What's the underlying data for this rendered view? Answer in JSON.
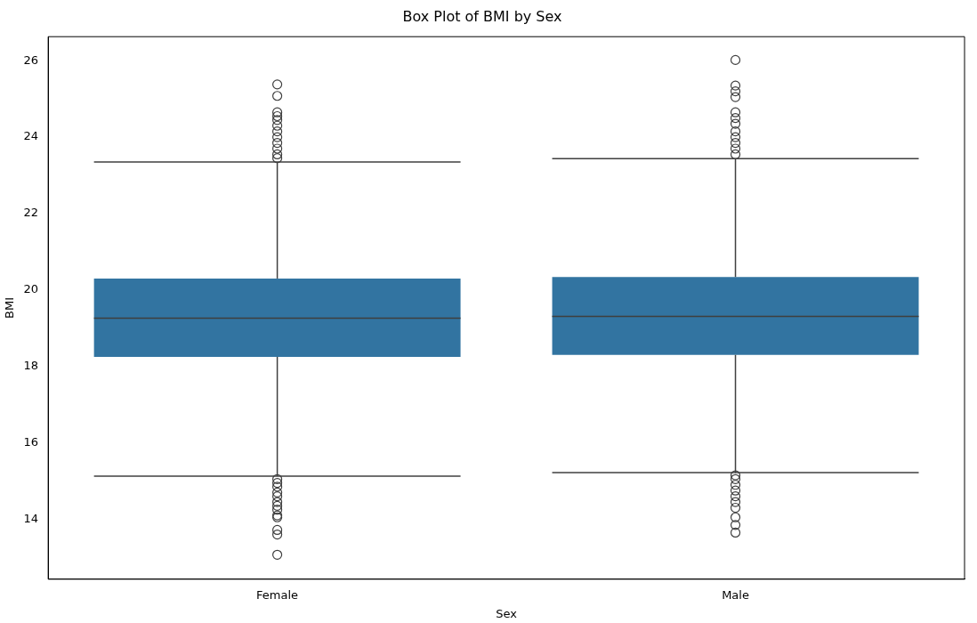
{
  "chart_data": {
    "type": "box",
    "title": "Box Plot of BMI by Sex",
    "xlabel": "Sex",
    "ylabel": "BMI",
    "categories": [
      "Female",
      "Male"
    ],
    "color": "#3274a1",
    "boxes": [
      {
        "low": 15.13,
        "q1": 18.25,
        "median": 19.26,
        "q3": 20.3,
        "high": 23.35,
        "outliers": [
          25.38,
          25.08,
          24.65,
          24.55,
          24.45,
          24.3,
          24.15,
          24.0,
          23.85,
          23.7,
          23.55,
          23.45,
          15.05,
          14.95,
          14.85,
          14.7,
          14.6,
          14.45,
          14.35,
          14.25,
          14.1,
          14.05,
          13.72,
          13.6,
          13.07
        ]
      },
      {
        "low": 15.22,
        "q1": 18.3,
        "median": 19.31,
        "q3": 20.34,
        "high": 23.44,
        "outliers": [
          26.02,
          25.35,
          25.2,
          25.05,
          24.65,
          24.5,
          24.35,
          24.15,
          24.0,
          23.85,
          23.7,
          23.55,
          15.15,
          15.05,
          14.9,
          14.75,
          14.6,
          14.45,
          14.3,
          14.05,
          13.85,
          13.65
        ]
      }
    ],
    "ylim": [
      12.43,
      26.63
    ],
    "yticks": [
      14,
      16,
      18,
      20,
      22,
      24,
      26
    ],
    "marker": "circle",
    "grid": false,
    "legend": false
  }
}
